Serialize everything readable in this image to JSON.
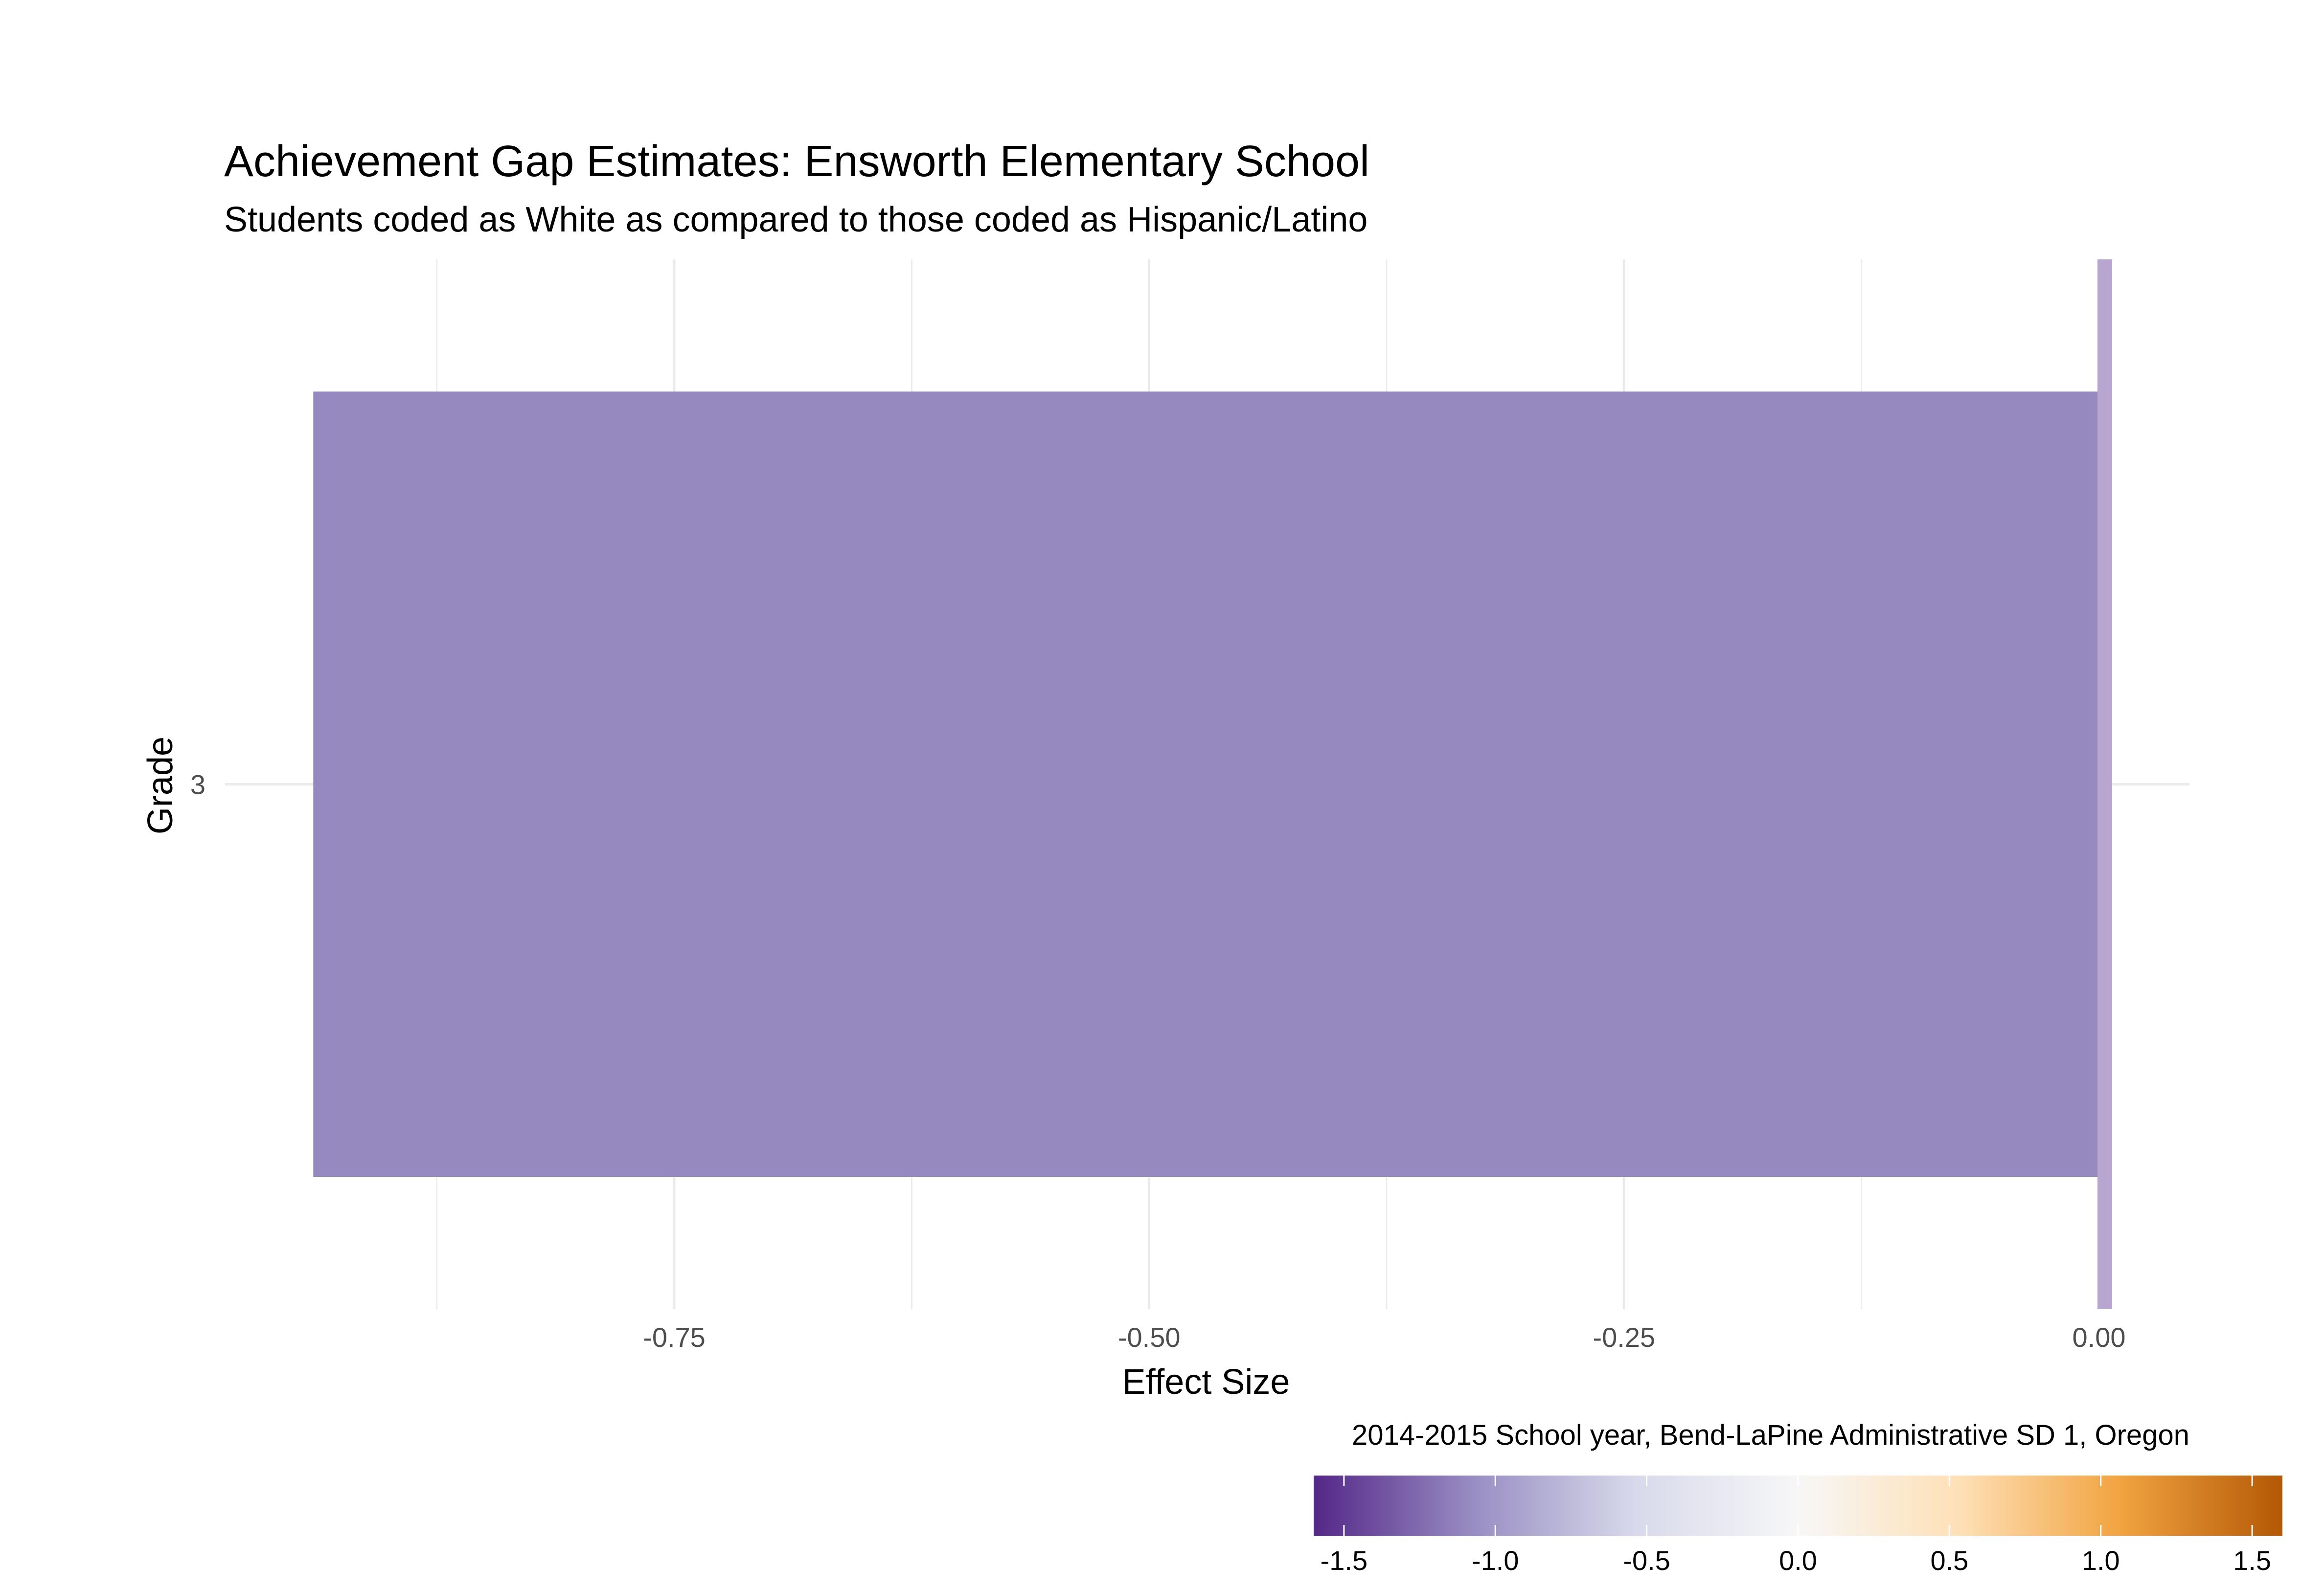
{
  "chart_data": {
    "type": "bar",
    "orientation": "horizontal",
    "title": "Achievement Gap Estimates: Ensworth Elementary School",
    "subtitle": "Students coded as White as compared to those coded as Hispanic/Latino",
    "xlabel": "Effect Size",
    "ylabel": "Grade",
    "caption": "2014-2015 School year, Bend-LaPine Administrative SD 1, Oregon",
    "categories": [
      "3"
    ],
    "values": [
      -0.94
    ],
    "xlim": [
      -1.0,
      0.05
    ],
    "x_ticks": [
      -0.75,
      -0.5,
      -0.25,
      0.0
    ],
    "x_tick_labels": [
      "-0.75",
      "-0.50",
      "-0.25",
      "0.00"
    ],
    "reference_line": 0.0,
    "grid": true,
    "bar_color": "#9689c0",
    "reference_line_color": "#b9a6d0",
    "gridline_color": "#ebebeb",
    "legend": {
      "position": "bottom-right",
      "type": "colorbar",
      "range": [
        -1.6,
        1.6
      ],
      "ticks": [
        -1.5,
        -1.0,
        -0.5,
        0.0,
        0.5,
        1.0,
        1.5
      ],
      "tick_labels": [
        "-1.5",
        "-1.0",
        "-0.5",
        "0.0",
        "0.5",
        "1.0",
        "1.5"
      ],
      "colors": [
        "#542788",
        "#998ec3",
        "#d8daeb",
        "#f7f7f7",
        "#fee0b6",
        "#f1a340",
        "#b35806"
      ]
    }
  }
}
